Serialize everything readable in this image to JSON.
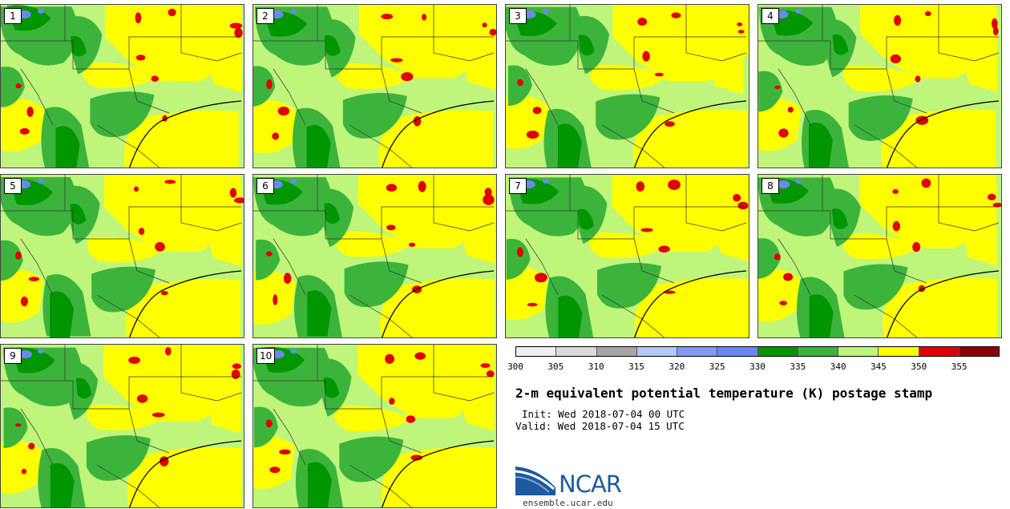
{
  "panels": [
    {
      "label": "1"
    },
    {
      "label": "2"
    },
    {
      "label": "3"
    },
    {
      "label": "4"
    },
    {
      "label": "5"
    },
    {
      "label": "6"
    },
    {
      "label": "7"
    },
    {
      "label": "8"
    },
    {
      "label": "9"
    },
    {
      "label": "10"
    }
  ],
  "colorbar": {
    "segments": [
      "#efefef",
      "#d9d9d9",
      "#a6a6a6",
      "#b3c8f5",
      "#8298f5",
      "#6d87f2",
      "#009600",
      "#3cb43c",
      "#bff57a",
      "#ffff00",
      "#e10000",
      "#8b0000"
    ],
    "ticks": [
      "300",
      "305",
      "310",
      "315",
      "320",
      "325",
      "330",
      "335",
      "340",
      "345",
      "350",
      "355"
    ]
  },
  "title": "2-m equivalent potential temperature (K) postage stamp",
  "init": "Init: Wed 2018-07-04 00 UTC",
  "valid": "Valid: Wed 2018-07-04 15 UTC",
  "logo": {
    "text": "NCAR",
    "url": "ensemble.ucar.edu"
  },
  "colors": {
    "dark_green": "#009600",
    "green": "#3cb43c",
    "light_green": "#bff57a",
    "yellow": "#ffff00",
    "red": "#e10000",
    "blue": "#6d87f2"
  }
}
